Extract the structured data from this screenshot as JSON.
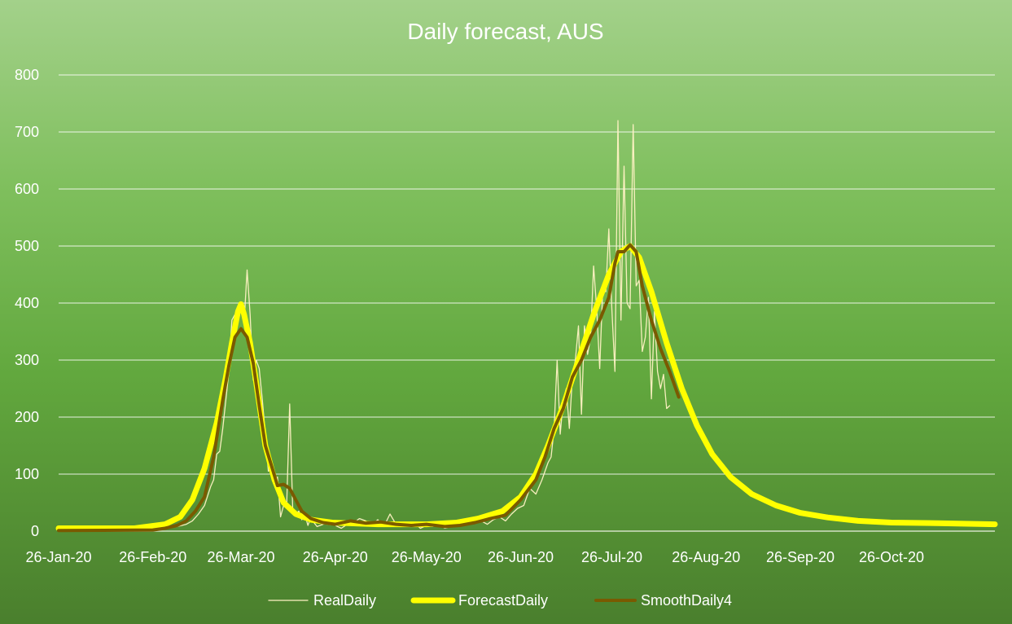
{
  "chart_data": {
    "type": "line",
    "title": "Daily forecast, AUS",
    "xlabel": "",
    "ylabel": "",
    "ylim": [
      0,
      800
    ],
    "yticks": [
      0,
      100,
      200,
      300,
      400,
      500,
      600,
      700,
      800
    ],
    "xlim": [
      "2020-01-26",
      "2020-11-29"
    ],
    "xticks": [
      "26-Jan-20",
      "26-Feb-20",
      "26-Mar-20",
      "26-Apr-20",
      "26-May-20",
      "26-Jun-20",
      "26-Jul-20",
      "26-Aug-20",
      "26-Sep-20",
      "26-Oct-20"
    ],
    "xtick_dates": [
      "2020-01-26",
      "2020-02-26",
      "2020-03-26",
      "2020-04-26",
      "2020-05-26",
      "2020-06-26",
      "2020-07-26",
      "2020-08-26",
      "2020-09-26",
      "2020-10-26"
    ],
    "grid": true,
    "legend_position": "bottom",
    "series": [
      {
        "name": "RealDaily",
        "color": "#fff2c4",
        "points": [
          [
            "2020-01-26",
            1
          ],
          [
            "2020-02-26",
            2
          ],
          [
            "2020-03-01",
            5
          ],
          [
            "2020-03-05",
            8
          ],
          [
            "2020-03-08",
            12
          ],
          [
            "2020-03-10",
            18
          ],
          [
            "2020-03-12",
            30
          ],
          [
            "2020-03-14",
            45
          ],
          [
            "2020-03-16",
            78
          ],
          [
            "2020-03-17",
            90
          ],
          [
            "2020-03-18",
            135
          ],
          [
            "2020-03-19",
            140
          ],
          [
            "2020-03-20",
            180
          ],
          [
            "2020-03-21",
            230
          ],
          [
            "2020-03-22",
            280
          ],
          [
            "2020-03-23",
            370
          ],
          [
            "2020-03-24",
            380
          ],
          [
            "2020-03-25",
            370
          ],
          [
            "2020-03-26",
            400
          ],
          [
            "2020-03-27",
            365
          ],
          [
            "2020-03-28",
            458
          ],
          [
            "2020-03-29",
            380
          ],
          [
            "2020-03-30",
            265
          ],
          [
            "2020-03-31",
            300
          ],
          [
            "2020-04-01",
            285
          ],
          [
            "2020-04-02",
            230
          ],
          [
            "2020-04-03",
            170
          ],
          [
            "2020-04-04",
            105
          ],
          [
            "2020-04-05",
            110
          ],
          [
            "2020-04-06",
            85
          ],
          [
            "2020-04-07",
            95
          ],
          [
            "2020-04-08",
            25
          ],
          [
            "2020-04-09",
            45
          ],
          [
            "2020-04-10",
            40
          ],
          [
            "2020-04-11",
            223
          ],
          [
            "2020-04-12",
            40
          ],
          [
            "2020-04-13",
            30
          ],
          [
            "2020-04-14",
            35
          ],
          [
            "2020-04-15",
            20
          ],
          [
            "2020-04-16",
            30
          ],
          [
            "2020-04-17",
            10
          ],
          [
            "2020-04-18",
            25
          ],
          [
            "2020-04-19",
            15
          ],
          [
            "2020-04-20",
            8
          ],
          [
            "2020-04-22",
            12
          ],
          [
            "2020-04-24",
            18
          ],
          [
            "2020-04-26",
            10
          ],
          [
            "2020-04-28",
            5
          ],
          [
            "2020-04-30",
            12
          ],
          [
            "2020-05-02",
            15
          ],
          [
            "2020-05-04",
            22
          ],
          [
            "2020-05-06",
            18
          ],
          [
            "2020-05-08",
            10
          ],
          [
            "2020-05-10",
            20
          ],
          [
            "2020-05-12",
            8
          ],
          [
            "2020-05-14",
            30
          ],
          [
            "2020-05-16",
            12
          ],
          [
            "2020-05-18",
            10
          ],
          [
            "2020-05-20",
            8
          ],
          [
            "2020-05-22",
            15
          ],
          [
            "2020-05-24",
            5
          ],
          [
            "2020-05-26",
            10
          ],
          [
            "2020-05-28",
            8
          ],
          [
            "2020-05-30",
            12
          ],
          [
            "2020-06-01",
            5
          ],
          [
            "2020-06-03",
            8
          ],
          [
            "2020-06-05",
            12
          ],
          [
            "2020-06-07",
            10
          ],
          [
            "2020-06-09",
            15
          ],
          [
            "2020-06-11",
            20
          ],
          [
            "2020-06-13",
            18
          ],
          [
            "2020-06-15",
            12
          ],
          [
            "2020-06-17",
            20
          ],
          [
            "2020-06-19",
            25
          ],
          [
            "2020-06-21",
            18
          ],
          [
            "2020-06-23",
            30
          ],
          [
            "2020-06-25",
            40
          ],
          [
            "2020-06-27",
            45
          ],
          [
            "2020-06-29",
            75
          ],
          [
            "2020-07-01",
            65
          ],
          [
            "2020-07-03",
            90
          ],
          [
            "2020-07-05",
            120
          ],
          [
            "2020-07-06",
            130
          ],
          [
            "2020-07-07",
            180
          ],
          [
            "2020-07-08",
            300
          ],
          [
            "2020-07-09",
            170
          ],
          [
            "2020-07-10",
            230
          ],
          [
            "2020-07-11",
            250
          ],
          [
            "2020-07-12",
            180
          ],
          [
            "2020-07-13",
            270
          ],
          [
            "2020-07-14",
            300
          ],
          [
            "2020-07-15",
            360
          ],
          [
            "2020-07-16",
            205
          ],
          [
            "2020-07-17",
            360
          ],
          [
            "2020-07-18",
            310
          ],
          [
            "2020-07-19",
            340
          ],
          [
            "2020-07-20",
            465
          ],
          [
            "2020-07-21",
            390
          ],
          [
            "2020-07-22",
            285
          ],
          [
            "2020-07-23",
            425
          ],
          [
            "2020-07-24",
            420
          ],
          [
            "2020-07-25",
            530
          ],
          [
            "2020-07-26",
            390
          ],
          [
            "2020-07-27",
            280
          ],
          [
            "2020-07-28",
            720
          ],
          [
            "2020-07-29",
            370
          ],
          [
            "2020-07-30",
            640
          ],
          [
            "2020-07-31",
            400
          ],
          [
            "2020-08-01",
            390
          ],
          [
            "2020-08-02",
            713
          ],
          [
            "2020-08-03",
            430
          ],
          [
            "2020-08-04",
            440
          ],
          [
            "2020-08-05",
            315
          ],
          [
            "2020-08-06",
            340
          ],
          [
            "2020-08-07",
            410
          ],
          [
            "2020-08-08",
            232
          ],
          [
            "2020-08-09",
            385
          ],
          [
            "2020-08-10",
            280
          ],
          [
            "2020-08-11",
            250
          ],
          [
            "2020-08-12",
            275
          ],
          [
            "2020-08-13",
            215
          ],
          [
            "2020-08-14",
            220
          ]
        ]
      },
      {
        "name": "ForecastDaily",
        "color": "#ffff00",
        "points": [
          [
            "2020-01-26",
            5
          ],
          [
            "2020-02-20",
            5
          ],
          [
            "2020-03-01",
            12
          ],
          [
            "2020-03-06",
            25
          ],
          [
            "2020-03-10",
            55
          ],
          [
            "2020-03-14",
            110
          ],
          [
            "2020-03-18",
            190
          ],
          [
            "2020-03-21",
            270
          ],
          [
            "2020-03-23",
            330
          ],
          [
            "2020-03-25",
            385
          ],
          [
            "2020-03-26",
            398
          ],
          [
            "2020-03-27",
            380
          ],
          [
            "2020-03-29",
            330
          ],
          [
            "2020-03-31",
            260
          ],
          [
            "2020-04-03",
            150
          ],
          [
            "2020-04-06",
            90
          ],
          [
            "2020-04-09",
            50
          ],
          [
            "2020-04-13",
            30
          ],
          [
            "2020-04-18",
            20
          ],
          [
            "2020-04-25",
            15
          ],
          [
            "2020-05-10",
            12
          ],
          [
            "2020-05-26",
            12
          ],
          [
            "2020-06-05",
            15
          ],
          [
            "2020-06-12",
            22
          ],
          [
            "2020-06-20",
            35
          ],
          [
            "2020-06-26",
            60
          ],
          [
            "2020-07-01",
            100
          ],
          [
            "2020-07-05",
            150
          ],
          [
            "2020-07-10",
            220
          ],
          [
            "2020-07-15",
            300
          ],
          [
            "2020-07-20",
            380
          ],
          [
            "2020-07-25",
            450
          ],
          [
            "2020-07-29",
            490
          ],
          [
            "2020-08-01",
            500
          ],
          [
            "2020-08-04",
            480
          ],
          [
            "2020-08-08",
            420
          ],
          [
            "2020-08-13",
            330
          ],
          [
            "2020-08-18",
            250
          ],
          [
            "2020-08-23",
            185
          ],
          [
            "2020-08-28",
            135
          ],
          [
            "2020-09-03",
            95
          ],
          [
            "2020-09-10",
            65
          ],
          [
            "2020-09-18",
            45
          ],
          [
            "2020-09-26",
            32
          ],
          [
            "2020-10-05",
            24
          ],
          [
            "2020-10-15",
            18
          ],
          [
            "2020-10-26",
            15
          ],
          [
            "2020-11-10",
            14
          ],
          [
            "2020-11-29",
            12
          ]
        ]
      },
      {
        "name": "SmoothDaily4",
        "color": "#7a5a00",
        "points": [
          [
            "2020-01-26",
            1
          ],
          [
            "2020-02-26",
            2
          ],
          [
            "2020-03-01",
            5
          ],
          [
            "2020-03-05",
            10
          ],
          [
            "2020-03-08",
            18
          ],
          [
            "2020-03-11",
            35
          ],
          [
            "2020-03-14",
            60
          ],
          [
            "2020-03-17",
            130
          ],
          [
            "2020-03-20",
            230
          ],
          [
            "2020-03-22",
            290
          ],
          [
            "2020-03-24",
            340
          ],
          [
            "2020-03-26",
            355
          ],
          [
            "2020-03-28",
            340
          ],
          [
            "2020-03-30",
            295
          ],
          [
            "2020-04-01",
            220
          ],
          [
            "2020-04-03",
            150
          ],
          [
            "2020-04-05",
            115
          ],
          [
            "2020-04-07",
            80
          ],
          [
            "2020-04-09",
            82
          ],
          [
            "2020-04-11",
            75
          ],
          [
            "2020-04-13",
            55
          ],
          [
            "2020-04-15",
            35
          ],
          [
            "2020-04-18",
            22
          ],
          [
            "2020-04-22",
            15
          ],
          [
            "2020-04-26",
            12
          ],
          [
            "2020-05-01",
            18
          ],
          [
            "2020-05-06",
            14
          ],
          [
            "2020-05-11",
            16
          ],
          [
            "2020-05-16",
            12
          ],
          [
            "2020-05-21",
            10
          ],
          [
            "2020-05-26",
            12
          ],
          [
            "2020-06-01",
            8
          ],
          [
            "2020-06-06",
            10
          ],
          [
            "2020-06-11",
            15
          ],
          [
            "2020-06-16",
            22
          ],
          [
            "2020-06-21",
            28
          ],
          [
            "2020-06-26",
            55
          ],
          [
            "2020-07-01",
            90
          ],
          [
            "2020-07-04",
            130
          ],
          [
            "2020-07-07",
            180
          ],
          [
            "2020-07-10",
            215
          ],
          [
            "2020-07-13",
            270
          ],
          [
            "2020-07-16",
            300
          ],
          [
            "2020-07-19",
            340
          ],
          [
            "2020-07-22",
            370
          ],
          [
            "2020-07-25",
            410
          ],
          [
            "2020-07-27",
            470
          ],
          [
            "2020-07-28",
            490
          ],
          [
            "2020-07-30",
            490
          ],
          [
            "2020-08-01",
            502
          ],
          [
            "2020-08-03",
            490
          ],
          [
            "2020-08-05",
            430
          ],
          [
            "2020-08-08",
            370
          ],
          [
            "2020-08-11",
            320
          ],
          [
            "2020-08-14",
            280
          ],
          [
            "2020-08-17",
            235
          ]
        ]
      }
    ]
  }
}
